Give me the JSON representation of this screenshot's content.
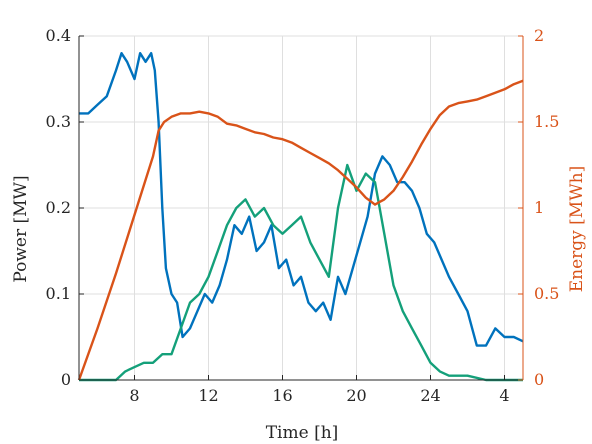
{
  "chart_data": {
    "type": "line",
    "xlabel": "Time [h]",
    "ylabel_left": "Power [MW]",
    "ylabel_right": "Energy [MWh]",
    "x_axis": {
      "range_hours_elapsed": [
        5,
        29
      ],
      "tick_labels": [
        "8",
        "12",
        "16",
        "20",
        "24",
        "4"
      ]
    },
    "y_left": {
      "ylim": [
        0,
        0.4
      ],
      "tick_labels": [
        "0",
        "0.1",
        "0.2",
        "0.3",
        "0.4"
      ]
    },
    "y_right": {
      "ylim": [
        0,
        2
      ],
      "tick_labels": [
        "0",
        "0.5",
        "1",
        "1.5",
        "2"
      ]
    },
    "grid": true,
    "colors": {
      "blue": "#0072BD",
      "green": "#14A07A",
      "orange": "#D95319",
      "axis": "#262626",
      "grid": "#dfdfdf"
    },
    "series": [
      {
        "axis": "left",
        "color": "#0072BD",
        "x": [
          5,
          5.5,
          6,
          6.5,
          7,
          7.3,
          7.6,
          8,
          8.3,
          8.6,
          8.9,
          9.1,
          9.3,
          9.5,
          9.7,
          10,
          10.3,
          10.6,
          11,
          11.4,
          11.8,
          12.2,
          12.6,
          13,
          13.4,
          13.8,
          14.2,
          14.6,
          15,
          15.4,
          15.8,
          16.2,
          16.6,
          17,
          17.4,
          17.8,
          18.2,
          18.6,
          19,
          19.4,
          19.8,
          20.2,
          20.6,
          21,
          21.4,
          21.8,
          22.2,
          22.6,
          23,
          23.4,
          23.8,
          24.2,
          24.6,
          25,
          25.5,
          26,
          26.5,
          27,
          27.5,
          28,
          28.5,
          29
        ],
        "y": [
          0.31,
          0.31,
          0.32,
          0.33,
          0.36,
          0.38,
          0.37,
          0.35,
          0.38,
          0.37,
          0.38,
          0.36,
          0.3,
          0.2,
          0.13,
          0.1,
          0.09,
          0.05,
          0.06,
          0.08,
          0.1,
          0.09,
          0.11,
          0.14,
          0.18,
          0.17,
          0.19,
          0.15,
          0.16,
          0.18,
          0.13,
          0.14,
          0.11,
          0.12,
          0.09,
          0.08,
          0.09,
          0.07,
          0.12,
          0.1,
          0.13,
          0.16,
          0.19,
          0.24,
          0.26,
          0.25,
          0.23,
          0.23,
          0.22,
          0.2,
          0.17,
          0.16,
          0.14,
          0.12,
          0.1,
          0.08,
          0.04,
          0.04,
          0.06,
          0.05,
          0.05,
          0.045
        ]
      },
      {
        "axis": "left",
        "color": "#14A07A",
        "x": [
          5,
          6,
          7,
          7.5,
          8,
          8.5,
          9,
          9.5,
          10,
          10.5,
          11,
          11.5,
          12,
          12.5,
          13,
          13.5,
          14,
          14.5,
          15,
          15.5,
          16,
          16.5,
          17,
          17.5,
          18,
          18.5,
          19,
          19.5,
          20,
          20.5,
          21,
          21.5,
          22,
          22.5,
          23,
          23.5,
          24,
          24.5,
          25,
          26,
          27,
          28,
          29
        ],
        "y": [
          0,
          0,
          0,
          0.01,
          0.015,
          0.02,
          0.02,
          0.03,
          0.03,
          0.06,
          0.09,
          0.1,
          0.12,
          0.15,
          0.18,
          0.2,
          0.21,
          0.19,
          0.2,
          0.18,
          0.17,
          0.18,
          0.19,
          0.16,
          0.14,
          0.12,
          0.2,
          0.25,
          0.22,
          0.24,
          0.23,
          0.17,
          0.11,
          0.08,
          0.06,
          0.04,
          0.02,
          0.01,
          0.005,
          0.005,
          0,
          0,
          0
        ]
      },
      {
        "axis": "right",
        "color": "#D95319",
        "x": [
          5,
          6,
          7,
          8,
          9,
          9.3,
          9.6,
          10,
          10.5,
          11,
          11.5,
          12,
          12.5,
          13,
          13.5,
          14,
          14.5,
          15,
          15.5,
          16,
          16.5,
          17,
          17.5,
          18,
          18.5,
          19,
          19.5,
          20,
          20.5,
          21,
          21.5,
          22,
          22.5,
          23,
          23.5,
          24,
          24.5,
          25,
          25.5,
          26,
          26.5,
          27,
          27.5,
          28,
          28.5,
          29
        ],
        "y": [
          0,
          0.3,
          0.62,
          0.96,
          1.3,
          1.45,
          1.5,
          1.53,
          1.55,
          1.55,
          1.56,
          1.55,
          1.53,
          1.49,
          1.48,
          1.46,
          1.44,
          1.43,
          1.41,
          1.4,
          1.38,
          1.35,
          1.32,
          1.29,
          1.26,
          1.22,
          1.17,
          1.12,
          1.06,
          1.02,
          1.05,
          1.1,
          1.18,
          1.27,
          1.37,
          1.46,
          1.54,
          1.59,
          1.61,
          1.62,
          1.63,
          1.65,
          1.67,
          1.69,
          1.72,
          1.74
        ]
      }
    ]
  }
}
